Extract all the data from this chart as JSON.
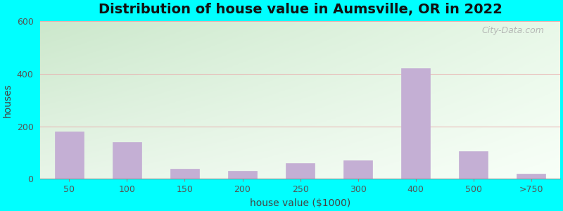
{
  "title": "Distribution of house value in Aumsville, OR in 2022",
  "xlabel": "house value ($1000)",
  "ylabel": "houses",
  "bar_labels": [
    "50",
    "100",
    "150",
    "200",
    "250",
    "300",
    "400",
    "500",
    ">750"
  ],
  "bar_values": [
    180,
    140,
    38,
    30,
    60,
    70,
    420,
    105,
    20
  ],
  "bar_color": "#c4afd4",
  "bar_edgecolor": "#c4afd4",
  "ylim": [
    0,
    600
  ],
  "yticks": [
    0,
    200,
    400,
    600
  ],
  "background_outer": "#00ffff",
  "grad_top_left": "#d8ecd8",
  "grad_top_right": "#f0f8f8",
  "grad_bottom_left": "#e8f5e0",
  "grad_bottom_right": "#f8fffa",
  "grid_color": "#e8b0b0",
  "title_fontsize": 14,
  "axis_label_fontsize": 10,
  "tick_fontsize": 9,
  "watermark_text": "City-Data.com"
}
